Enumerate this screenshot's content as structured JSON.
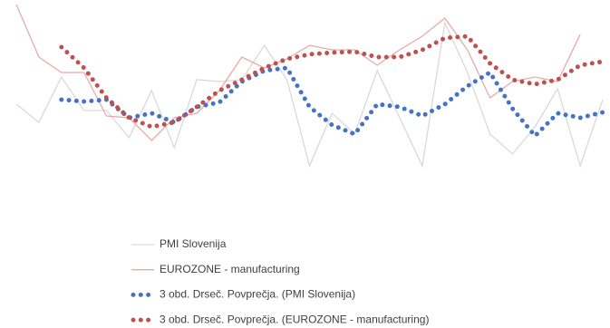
{
  "chart_data": {
    "type": "line",
    "categories": [
      null,
      null,
      null,
      null,
      null,
      null,
      null,
      null,
      null,
      null,
      null,
      null,
      null,
      null,
      null,
      null,
      null,
      null,
      null,
      null,
      null,
      null,
      null,
      null,
      null,
      null,
      null
    ],
    "ylim": [
      0,
      200
    ],
    "series": [
      {
        "name": "PMI Slovenija",
        "color": "#d9d9d9",
        "style": "solid",
        "values": [
          85,
          65,
          115,
          78,
          78,
          48,
          100,
          37,
          112,
          110,
          112,
          150,
          112,
          17,
          75,
          52,
          122,
          70,
          17,
          175,
          120,
          52,
          30,
          60,
          102,
          17,
          90
        ]
      },
      {
        "name": "EUROZONE - manufacturing",
        "color": "#e8aaa8",
        "style": "solid",
        "values": [
          195,
          137,
          120,
          120,
          72,
          70,
          45,
          70,
          75,
          100,
          137,
          125,
          135,
          150,
          145,
          145,
          128,
          145,
          160,
          180,
          145,
          92,
          110,
          115,
          110,
          162,
          null
        ]
      },
      {
        "name": "3 obd. Drseč. Povprečja. (PMI Slovenija)",
        "color": "#4472c4",
        "style": "dotted",
        "values": [
          null,
          null,
          90,
          88,
          90,
          70,
          75,
          65,
          82,
          87,
          110,
          122,
          125,
          82,
          62,
          52,
          85,
          82,
          72,
          85,
          105,
          120,
          80,
          50,
          75,
          70,
          76
        ]
      },
      {
        "name": "3 obd. Drseč. Povprečja. (EUROZONE - manufacturing)",
        "color": "#c0504d",
        "style": "dotted",
        "values": [
          null,
          null,
          148,
          125,
          92,
          70,
          60,
          65,
          82,
          100,
          112,
          125,
          135,
          140,
          142,
          143,
          137,
          137,
          145,
          158,
          160,
          130,
          112,
          107,
          112,
          128,
          132
        ]
      }
    ]
  }
}
